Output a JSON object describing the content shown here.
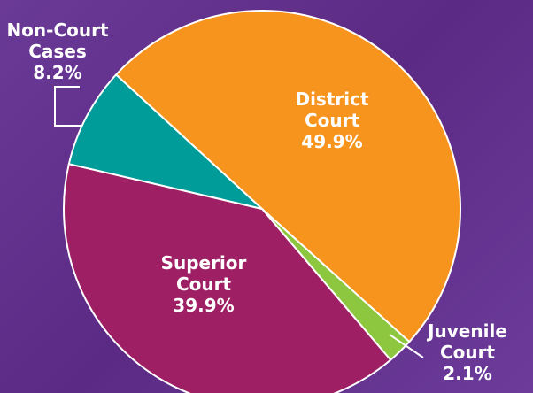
{
  "chart_data": {
    "type": "pie",
    "categories": [
      "District Court",
      "Juvenile Court",
      "Superior Court",
      "Non-Court Cases"
    ],
    "values": [
      49.9,
      2.1,
      39.9,
      8.2
    ],
    "value_labels": [
      "49.9%",
      "2.1%",
      "39.9%",
      "8.2%"
    ],
    "colors": [
      "#f7941d",
      "#8dc63f",
      "#9e1f63",
      "#009c9a"
    ]
  }
}
